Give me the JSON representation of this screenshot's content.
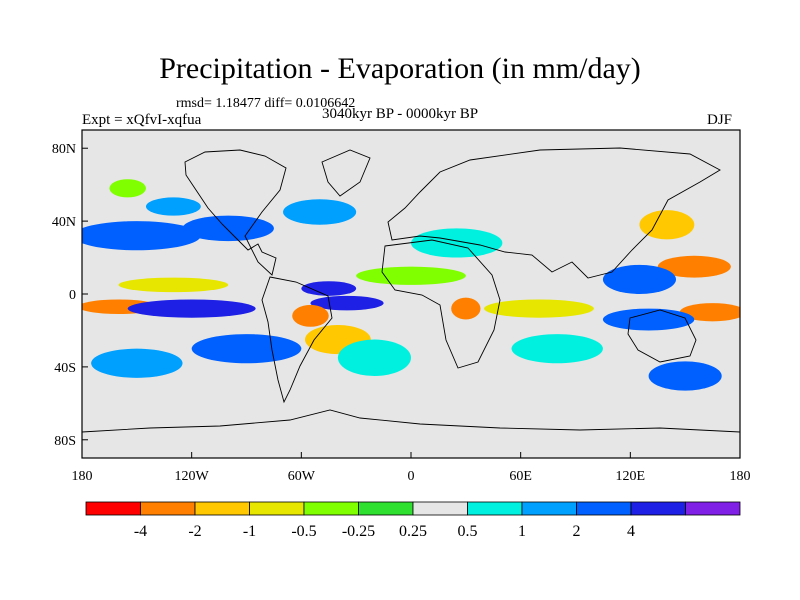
{
  "header": {
    "title": "Precipitation - Evaporation (in mm/day)",
    "stats": "rmsd= 1.18477 diff= 0.0106642",
    "experiment": "Expt = xQfvI-xqfua",
    "period": "3040kyr BP - 0000kyr BP",
    "season": "DJF"
  },
  "chart_data": {
    "type": "heatmap",
    "title": "Precipitation - Evaporation (in mm/day)",
    "subtitle": "3040kyr BP - 0000kyr BP",
    "units": "mm/day",
    "projection": "cylindrical equidistant",
    "x_range": [
      -180,
      180
    ],
    "y_range": [
      -90,
      90
    ],
    "x_ticks": [
      {
        "value": -180,
        "label": "180"
      },
      {
        "value": -120,
        "label": "120W"
      },
      {
        "value": -60,
        "label": "60W"
      },
      {
        "value": 0,
        "label": "0"
      },
      {
        "value": 60,
        "label": "60E"
      },
      {
        "value": 120,
        "label": "120E"
      },
      {
        "value": 180,
        "label": "180"
      }
    ],
    "y_ticks": [
      {
        "value": 80,
        "label": "80N"
      },
      {
        "value": 40,
        "label": "40N"
      },
      {
        "value": 0,
        "label": "0"
      },
      {
        "value": -40,
        "label": "40S"
      },
      {
        "value": -80,
        "label": "80S"
      }
    ],
    "colorbar": {
      "colors": [
        "#ff0000",
        "#ff8000",
        "#ffc800",
        "#e6e600",
        "#80ff00",
        "#30e030",
        "#e6e6e6",
        "#00f0e0",
        "#00a0ff",
        "#0060ff",
        "#1e20e6",
        "#8020e6"
      ],
      "levels": [
        -4,
        -2,
        -1,
        -0.5,
        -0.25,
        0.25,
        0.5,
        1,
        2,
        4
      ],
      "labels": [
        "-4",
        "-2",
        "-1",
        "-0.5",
        "-0.25",
        "0.25",
        "0.5",
        "1",
        "2",
        "4"
      ]
    },
    "regions": [
      {
        "lon": -150,
        "lat": 32,
        "rx": 35,
        "ry": 8,
        "value": 3.0
      },
      {
        "lon": -100,
        "lat": 36,
        "rx": 25,
        "ry": 7,
        "value": 2.0
      },
      {
        "lon": -50,
        "lat": 45,
        "rx": 20,
        "ry": 7,
        "value": 1.5
      },
      {
        "lon": -130,
        "lat": 48,
        "rx": 15,
        "ry": 5,
        "value": 1.5
      },
      {
        "lon": -155,
        "lat": 58,
        "rx": 10,
        "ry": 5,
        "value": -0.4
      },
      {
        "lon": 140,
        "lat": 38,
        "rx": 15,
        "ry": 8,
        "value": -1.5
      },
      {
        "lon": 155,
        "lat": 15,
        "rx": 20,
        "ry": 6,
        "value": -3.0
      },
      {
        "lon": 125,
        "lat": 8,
        "rx": 20,
        "ry": 8,
        "value": 2.5
      },
      {
        "lon": 165,
        "lat": -10,
        "rx": 18,
        "ry": 5,
        "value": -3.0
      },
      {
        "lon": 130,
        "lat": -14,
        "rx": 25,
        "ry": 6,
        "value": 3.0
      },
      {
        "lon": -160,
        "lat": -7,
        "rx": 22,
        "ry": 4,
        "value": -3.5
      },
      {
        "lon": -120,
        "lat": -8,
        "rx": 35,
        "ry": 5,
        "value": 4.5
      },
      {
        "lon": -130,
        "lat": 5,
        "rx": 30,
        "ry": 4,
        "value": -0.8
      },
      {
        "lon": -45,
        "lat": 3,
        "rx": 15,
        "ry": 4,
        "value": 5.0
      },
      {
        "lon": -35,
        "lat": -5,
        "rx": 20,
        "ry": 4,
        "value": 4.5
      },
      {
        "lon": -55,
        "lat": -12,
        "rx": 10,
        "ry": 6,
        "value": -3.0
      },
      {
        "lon": -40,
        "lat": -25,
        "rx": 18,
        "ry": 8,
        "value": -1.2
      },
      {
        "lon": -90,
        "lat": -30,
        "rx": 30,
        "ry": 8,
        "value": 2.0
      },
      {
        "lon": -150,
        "lat": -38,
        "rx": 25,
        "ry": 8,
        "value": 1.5
      },
      {
        "lon": -20,
        "lat": -35,
        "rx": 20,
        "ry": 10,
        "value": 0.6
      },
      {
        "lon": 30,
        "lat": -8,
        "rx": 8,
        "ry": 6,
        "value": -3.0
      },
      {
        "lon": 70,
        "lat": -8,
        "rx": 30,
        "ry": 5,
        "value": -0.8
      },
      {
        "lon": 80,
        "lat": -30,
        "rx": 25,
        "ry": 8,
        "value": 0.8
      },
      {
        "lon": 0,
        "lat": 10,
        "rx": 30,
        "ry": 5,
        "value": -0.5
      },
      {
        "lon": 25,
        "lat": 28,
        "rx": 25,
        "ry": 8,
        "value": 0.6
      },
      {
        "lon": 150,
        "lat": -45,
        "rx": 20,
        "ry": 8,
        "value": 2.0
      }
    ]
  }
}
